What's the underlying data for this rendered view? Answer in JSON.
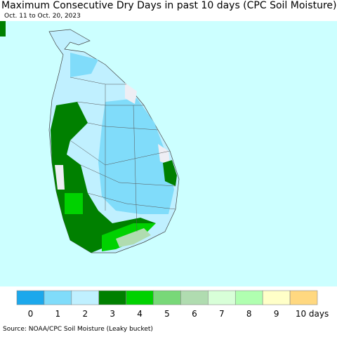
{
  "header": {
    "title": "Maximum Consecutive Dry Days in past 10 days (CPC Soil Moisture)",
    "subtitle": "Oct. 11 to Oct. 20, 2023"
  },
  "legend": {
    "colors": [
      "#1ca8ec",
      "#80dcfa",
      "#c0f0ff",
      "#008000",
      "#00d200",
      "#78d878",
      "#b0dcb0",
      "#d8ffd8",
      "#b0ffb0",
      "#ffffc8",
      "#ffd880"
    ],
    "labels": [
      "0",
      "1",
      "2",
      "3",
      "4",
      "5",
      "6",
      "7",
      "8",
      "9",
      "10 days"
    ]
  },
  "footer": {
    "source": "Source: NOAA/CPC Soil Moisture (Leaky bucket)"
  }
}
